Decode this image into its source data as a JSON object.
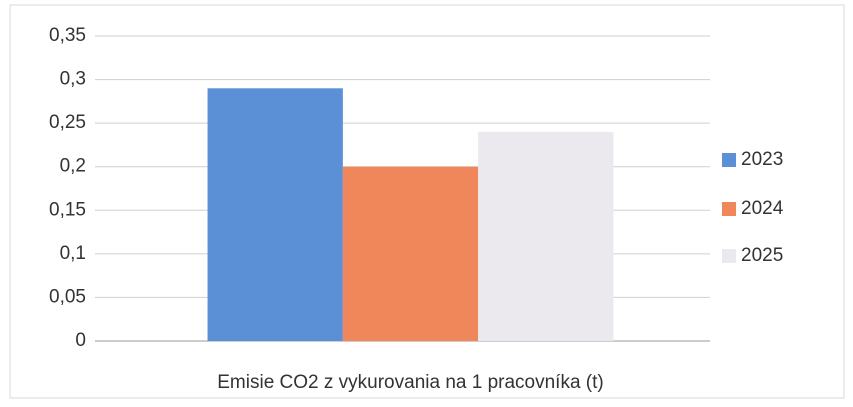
{
  "chart_data": {
    "type": "bar",
    "categories": [
      "Emisie CO2 z vykurovania na 1 pracovníka (t)"
    ],
    "series": [
      {
        "name": "2023",
        "color": "#5b8fd6",
        "values": [
          0.29
        ]
      },
      {
        "name": "2024",
        "color": "#f0875a",
        "values": [
          0.2
        ]
      },
      {
        "name": "2025",
        "color": "#ebe8ee",
        "values": [
          0.24
        ]
      }
    ],
    "ylim": [
      0,
      0.35
    ],
    "yticks": [
      0,
      {
        "value": 0.05,
        "label": "0,05"
      },
      {
        "value": 0.1,
        "label": "0,1"
      },
      {
        "value": 0.15,
        "label": "0,15"
      },
      {
        "value": 0.2,
        "label": "0,2"
      },
      {
        "value": 0.25,
        "label": "0,25"
      },
      {
        "value": 0.3,
        "label": "0,3"
      },
      {
        "value": 0.35,
        "label": "0,35"
      }
    ],
    "grid": true,
    "legend": "right"
  }
}
